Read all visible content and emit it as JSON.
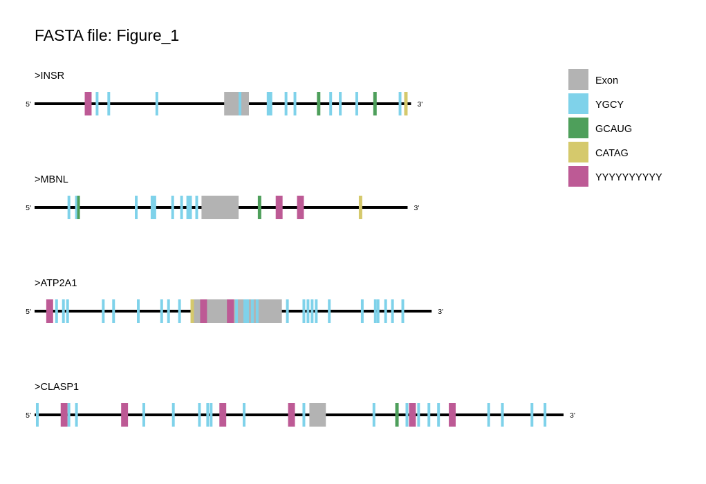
{
  "title": "FASTA file: Figure_1",
  "end_labels": {
    "five_prime": "5'",
    "three_prime": "3'"
  },
  "features": {
    "Exon": "#b3b3b3",
    "YGCY": "#7fd2ea",
    "GCAUG": "#4e9f5b",
    "CATAG": "#d5c96c",
    "YYYYYYYYYY": "#bd5a95"
  },
  "legend_order": [
    "Exon",
    "YGCY",
    "GCAUG",
    "CATAG",
    "YYYYYYYYYY"
  ],
  "sequences": [
    {
      "name": ">INSR",
      "length": 548,
      "marks": [
        {
          "type": "Exon",
          "start": 276,
          "end": 312
        },
        {
          "type": "YYYYYYYYYY",
          "start": 73,
          "end": 83
        },
        {
          "type": "YGCY",
          "start": 89,
          "end": 93
        },
        {
          "type": "YGCY",
          "start": 106,
          "end": 110
        },
        {
          "type": "YGCY",
          "start": 176,
          "end": 180
        },
        {
          "type": "YGCY",
          "start": 297,
          "end": 301
        },
        {
          "type": "YGCY",
          "start": 338,
          "end": 346
        },
        {
          "type": "YGCY",
          "start": 364,
          "end": 368
        },
        {
          "type": "YGCY",
          "start": 377,
          "end": 381
        },
        {
          "type": "GCAUG",
          "start": 411,
          "end": 416
        },
        {
          "type": "YGCY",
          "start": 429,
          "end": 433
        },
        {
          "type": "YGCY",
          "start": 443,
          "end": 447
        },
        {
          "type": "YGCY",
          "start": 467,
          "end": 471
        },
        {
          "type": "GCAUG",
          "start": 493,
          "end": 498
        },
        {
          "type": "YGCY",
          "start": 530,
          "end": 534
        },
        {
          "type": "CATAG",
          "start": 538,
          "end": 543
        }
      ]
    },
    {
      "name": ">MBNL",
      "length": 543,
      "marks": [
        {
          "type": "Exon",
          "start": 243,
          "end": 297
        },
        {
          "type": "YGCY",
          "start": 48,
          "end": 52
        },
        {
          "type": "YGCY",
          "start": 59,
          "end": 63
        },
        {
          "type": "GCAUG",
          "start": 62,
          "end": 66
        },
        {
          "type": "YGCY",
          "start": 146,
          "end": 150
        },
        {
          "type": "YGCY",
          "start": 169,
          "end": 177
        },
        {
          "type": "YGCY",
          "start": 199,
          "end": 203
        },
        {
          "type": "YGCY",
          "start": 212,
          "end": 216
        },
        {
          "type": "YGCY",
          "start": 221,
          "end": 229
        },
        {
          "type": "YGCY",
          "start": 234,
          "end": 238
        },
        {
          "type": "GCAUG",
          "start": 325,
          "end": 330
        },
        {
          "type": "YYYYYYYYYY",
          "start": 351,
          "end": 361
        },
        {
          "type": "YYYYYYYYYY",
          "start": 382,
          "end": 392
        },
        {
          "type": "CATAG",
          "start": 472,
          "end": 477
        }
      ]
    },
    {
      "name": ">ATP2A1",
      "length": 578,
      "marks": [
        {
          "type": "Exon",
          "start": 231,
          "end": 360
        },
        {
          "type": "YYYYYYYYYY",
          "start": 17,
          "end": 27
        },
        {
          "type": "YGCY",
          "start": 30,
          "end": 34
        },
        {
          "type": "YGCY",
          "start": 40,
          "end": 44
        },
        {
          "type": "YGCY",
          "start": 46,
          "end": 50
        },
        {
          "type": "YGCY",
          "start": 98,
          "end": 102
        },
        {
          "type": "YGCY",
          "start": 113,
          "end": 117
        },
        {
          "type": "YGCY",
          "start": 149,
          "end": 153
        },
        {
          "type": "YGCY",
          "start": 183,
          "end": 187
        },
        {
          "type": "YGCY",
          "start": 193,
          "end": 197
        },
        {
          "type": "YGCY",
          "start": 209,
          "end": 213
        },
        {
          "type": "CATAG",
          "start": 227,
          "end": 232
        },
        {
          "type": "YYYYYYYYYY",
          "start": 241,
          "end": 251
        },
        {
          "type": "YYYYYYYYYY",
          "start": 280,
          "end": 290
        },
        {
          "type": "YGCY",
          "start": 292,
          "end": 296
        },
        {
          "type": "YGCY",
          "start": 304,
          "end": 312
        },
        {
          "type": "YGCY",
          "start": 315,
          "end": 319
        },
        {
          "type": "YGCY",
          "start": 322,
          "end": 326
        },
        {
          "type": "YGCY",
          "start": 366,
          "end": 370
        },
        {
          "type": "YGCY",
          "start": 390,
          "end": 394
        },
        {
          "type": "YGCY",
          "start": 396,
          "end": 400
        },
        {
          "type": "YGCY",
          "start": 402,
          "end": 406
        },
        {
          "type": "YGCY",
          "start": 408,
          "end": 412
        },
        {
          "type": "YGCY",
          "start": 427,
          "end": 431
        },
        {
          "type": "YGCY",
          "start": 475,
          "end": 479
        },
        {
          "type": "YGCY",
          "start": 494,
          "end": 498
        },
        {
          "type": "YGCY",
          "start": 498,
          "end": 502
        },
        {
          "type": "YGCY",
          "start": 509,
          "end": 513
        },
        {
          "type": "YGCY",
          "start": 519,
          "end": 523
        },
        {
          "type": "YGCY",
          "start": 534,
          "end": 538
        }
      ]
    },
    {
      "name": ">CLASP1",
      "length": 770,
      "marks": [
        {
          "type": "Exon",
          "start": 400,
          "end": 424
        },
        {
          "type": "YGCY",
          "start": 2,
          "end": 6
        },
        {
          "type": "YYYYYYYYYY",
          "start": 38,
          "end": 48
        },
        {
          "type": "YGCY",
          "start": 48,
          "end": 52
        },
        {
          "type": "YGCY",
          "start": 59,
          "end": 63
        },
        {
          "type": "YYYYYYYYYY",
          "start": 126,
          "end": 136
        },
        {
          "type": "YGCY",
          "start": 157,
          "end": 161
        },
        {
          "type": "YGCY",
          "start": 200,
          "end": 204
        },
        {
          "type": "YGCY",
          "start": 238,
          "end": 242
        },
        {
          "type": "YGCY",
          "start": 250,
          "end": 254
        },
        {
          "type": "YGCY",
          "start": 255,
          "end": 259
        },
        {
          "type": "YYYYYYYYYY",
          "start": 269,
          "end": 279
        },
        {
          "type": "YGCY",
          "start": 303,
          "end": 307
        },
        {
          "type": "YYYYYYYYYY",
          "start": 369,
          "end": 379
        },
        {
          "type": "YGCY",
          "start": 390,
          "end": 394
        },
        {
          "type": "YGCY",
          "start": 492,
          "end": 496
        },
        {
          "type": "GCAUG",
          "start": 525,
          "end": 530
        },
        {
          "type": "YGCY",
          "start": 540,
          "end": 544
        },
        {
          "type": "YYYYYYYYYY",
          "start": 545,
          "end": 555
        },
        {
          "type": "YGCY",
          "start": 557,
          "end": 561
        },
        {
          "type": "YGCY",
          "start": 572,
          "end": 576
        },
        {
          "type": "YGCY",
          "start": 586,
          "end": 590
        },
        {
          "type": "YYYYYYYYYY",
          "start": 603,
          "end": 613
        },
        {
          "type": "YGCY",
          "start": 659,
          "end": 663
        },
        {
          "type": "YGCY",
          "start": 679,
          "end": 683
        },
        {
          "type": "YGCY",
          "start": 722,
          "end": 726
        },
        {
          "type": "YGCY",
          "start": 741,
          "end": 745
        }
      ]
    }
  ]
}
